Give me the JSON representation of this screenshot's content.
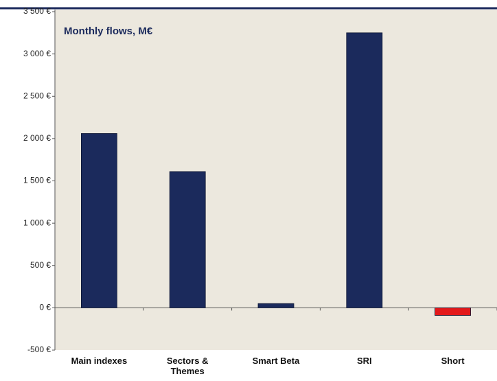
{
  "chart_data": {
    "type": "bar",
    "title": "Monthly flows, M€",
    "categories": [
      "Main indexes",
      "Sectors & Themes",
      "Smart Beta",
      "SRI",
      "Short"
    ],
    "values": [
      2060,
      1610,
      50,
      3250,
      -90
    ],
    "colors": [
      "#1b2a5c",
      "#1b2a5c",
      "#1b2a5c",
      "#1b2a5c",
      "#e3191b"
    ],
    "ylim": [
      -500,
      3500
    ],
    "yticks": [
      {
        "value": -500,
        "label": "-500 €"
      },
      {
        "value": 0,
        "label": "0 €"
      },
      {
        "value": 500,
        "label": "500 €"
      },
      {
        "value": 1000,
        "label": "1 000 €"
      },
      {
        "value": 1500,
        "label": "1 500 €"
      },
      {
        "value": 2000,
        "label": "2 000 €"
      },
      {
        "value": 2500,
        "label": "2 500 €"
      },
      {
        "value": 3000,
        "label": "3 000 €"
      },
      {
        "value": 3500,
        "label": "3 500 €"
      }
    ],
    "grid": false
  }
}
